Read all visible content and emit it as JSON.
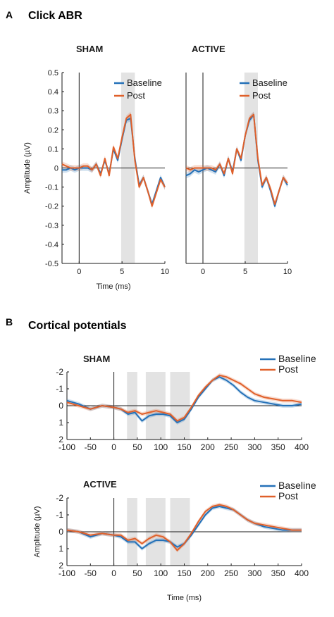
{
  "figure": {
    "panel_a_letter": "A",
    "panel_a_title": "Click ABR",
    "panel_b_letter": "B",
    "panel_b_title": "Cortical potentials"
  },
  "colors": {
    "baseline": "#2471b8",
    "post": "#e0602a",
    "shade": "#e3e3e3",
    "axis": "#1a1a1a"
  },
  "chart_data": [
    {
      "type": "line",
      "panel": "A",
      "title": "SHAM",
      "xlabel": "Time (ms)",
      "ylabel": "Amplitude (µV)",
      "xlim": [
        -2,
        10
      ],
      "ylim": [
        -0.5,
        0.5
      ],
      "xticks": [
        0,
        5,
        10
      ],
      "yticks": [
        0.5,
        0.4,
        0.3,
        0.2,
        0.1,
        0,
        -0.1,
        -0.2,
        -0.3,
        -0.4,
        -0.5
      ],
      "y_inverted": false,
      "shaded_windows": [
        [
          4.9,
          6.5
        ]
      ],
      "legend_position": "top-right",
      "series": [
        {
          "name": "Baseline",
          "x": [
            -2,
            -1.5,
            -1,
            -0.5,
            0,
            0.5,
            1,
            1.5,
            2,
            2.5,
            3,
            3.5,
            4,
            4.5,
            5,
            5.5,
            6,
            6.5,
            7,
            7.5,
            8,
            8.5,
            9,
            9.5,
            10
          ],
          "y": [
            -0.01,
            -0.01,
            0.0,
            -0.01,
            0.0,
            0.0,
            0.0,
            -0.01,
            0.02,
            -0.03,
            0.04,
            -0.03,
            0.1,
            0.04,
            0.15,
            0.25,
            0.26,
            0.05,
            -0.09,
            -0.05,
            -0.12,
            -0.19,
            -0.12,
            -0.05,
            -0.1
          ]
        },
        {
          "name": "Post",
          "x": [
            -2,
            -1.5,
            -1,
            -0.5,
            0,
            0.5,
            1,
            1.5,
            2,
            2.5,
            3,
            3.5,
            4,
            4.5,
            5,
            5.5,
            6,
            6.5,
            7,
            7.5,
            8,
            8.5,
            9,
            9.5,
            10
          ],
          "y": [
            0.02,
            0.01,
            0.0,
            0.0,
            0.0,
            0.01,
            0.01,
            -0.01,
            0.02,
            -0.04,
            0.05,
            -0.04,
            0.11,
            0.05,
            0.16,
            0.26,
            0.28,
            0.04,
            -0.1,
            -0.05,
            -0.12,
            -0.2,
            -0.13,
            -0.06,
            -0.1
          ]
        }
      ]
    },
    {
      "type": "line",
      "panel": "A",
      "title": "ACTIVE",
      "xlabel": "",
      "ylabel": "",
      "xlim": [
        -2,
        10
      ],
      "ylim": [
        -0.5,
        0.5
      ],
      "xticks": [
        0,
        5,
        10
      ],
      "yticks": [],
      "y_inverted": false,
      "shaded_windows": [
        [
          4.9,
          6.5
        ]
      ],
      "legend_position": "top-right",
      "series": [
        {
          "name": "Baseline",
          "x": [
            -2,
            -1.5,
            -1,
            -0.5,
            0,
            0.5,
            1,
            1.5,
            2,
            2.5,
            3,
            3.5,
            4,
            4.5,
            5,
            5.5,
            6,
            6.5,
            7,
            7.5,
            8,
            8.5,
            9,
            9.5,
            10
          ],
          "y": [
            -0.04,
            -0.03,
            -0.01,
            -0.02,
            -0.01,
            0.0,
            -0.01,
            -0.02,
            0.02,
            -0.04,
            0.05,
            -0.02,
            0.1,
            0.04,
            0.17,
            0.25,
            0.28,
            0.04,
            -0.1,
            -0.05,
            -0.12,
            -0.2,
            -0.12,
            -0.05,
            -0.09
          ]
        },
        {
          "name": "Post",
          "x": [
            -2,
            -1.5,
            -1,
            -0.5,
            0,
            0.5,
            1,
            1.5,
            2,
            2.5,
            3,
            3.5,
            4,
            4.5,
            5,
            5.5,
            6,
            6.5,
            7,
            7.5,
            8,
            8.5,
            9,
            9.5,
            10
          ],
          "y": [
            0.0,
            -0.01,
            0.0,
            0.0,
            0.0,
            0.0,
            0.0,
            -0.01,
            0.02,
            -0.03,
            0.05,
            -0.03,
            0.1,
            0.05,
            0.17,
            0.26,
            0.28,
            0.05,
            -0.09,
            -0.05,
            -0.11,
            -0.19,
            -0.12,
            -0.05,
            -0.08
          ]
        }
      ]
    },
    {
      "type": "line",
      "panel": "B",
      "title": "SHAM",
      "xlabel": "",
      "ylabel": "",
      "xlim": [
        -100,
        400
      ],
      "ylim": [
        -2,
        2
      ],
      "xticks": [
        -100,
        -50,
        0,
        50,
        100,
        150,
        200,
        250,
        300,
        350,
        400
      ],
      "yticks": [
        -2,
        -1,
        0,
        1,
        2
      ],
      "y_inverted": true,
      "shaded_windows": [
        [
          28,
          50
        ],
        [
          68,
          110
        ],
        [
          120,
          162
        ]
      ],
      "legend_position": "top-right",
      "series": [
        {
          "name": "Baseline",
          "x": [
            -100,
            -75,
            -50,
            -25,
            0,
            15,
            30,
            45,
            60,
            75,
            90,
            105,
            120,
            135,
            150,
            165,
            180,
            195,
            210,
            225,
            240,
            255,
            270,
            285,
            300,
            320,
            340,
            360,
            380,
            400
          ],
          "y": [
            -0.3,
            -0.1,
            0.2,
            0.0,
            0.1,
            0.2,
            0.5,
            0.4,
            0.9,
            0.6,
            0.5,
            0.5,
            0.6,
            1.0,
            0.8,
            0.2,
            -0.5,
            -1.0,
            -1.5,
            -1.7,
            -1.5,
            -1.2,
            -0.8,
            -0.5,
            -0.3,
            -0.2,
            -0.1,
            0.0,
            0.0,
            -0.1
          ]
        },
        {
          "name": "Post",
          "x": [
            -100,
            -75,
            -50,
            -25,
            0,
            15,
            30,
            45,
            60,
            75,
            90,
            105,
            120,
            135,
            150,
            165,
            180,
            195,
            210,
            225,
            240,
            255,
            270,
            285,
            300,
            320,
            340,
            360,
            380,
            400
          ],
          "y": [
            -0.2,
            0.0,
            0.2,
            0.0,
            0.1,
            0.2,
            0.4,
            0.3,
            0.5,
            0.4,
            0.3,
            0.4,
            0.5,
            0.9,
            0.7,
            0.1,
            -0.6,
            -1.1,
            -1.5,
            -1.8,
            -1.7,
            -1.5,
            -1.3,
            -1.0,
            -0.7,
            -0.5,
            -0.4,
            -0.3,
            -0.3,
            -0.2
          ]
        }
      ]
    },
    {
      "type": "line",
      "panel": "B",
      "title": "ACTIVE",
      "xlabel": "Time (ms)",
      "ylabel": "Amplitude (µV)",
      "xlim": [
        -100,
        400
      ],
      "ylim": [
        -2,
        2
      ],
      "xticks": [
        -100,
        -50,
        0,
        50,
        100,
        150,
        200,
        250,
        300,
        350,
        400
      ],
      "yticks": [
        -2,
        -1,
        0,
        1,
        2
      ],
      "y_inverted": true,
      "shaded_windows": [
        [
          28,
          50
        ],
        [
          68,
          110
        ],
        [
          120,
          162
        ]
      ],
      "legend_position": "top-right",
      "series": [
        {
          "name": "Baseline",
          "x": [
            -100,
            -75,
            -50,
            -25,
            0,
            15,
            30,
            45,
            60,
            75,
            90,
            105,
            120,
            135,
            150,
            165,
            180,
            195,
            210,
            225,
            240,
            255,
            270,
            285,
            300,
            320,
            340,
            360,
            380,
            400
          ],
          "y": [
            -0.1,
            0.0,
            0.3,
            0.1,
            0.2,
            0.3,
            0.6,
            0.6,
            1.0,
            0.7,
            0.5,
            0.5,
            0.6,
            0.9,
            0.7,
            0.2,
            -0.4,
            -1.0,
            -1.4,
            -1.5,
            -1.4,
            -1.3,
            -1.0,
            -0.7,
            -0.5,
            -0.3,
            -0.2,
            -0.1,
            -0.1,
            -0.1
          ]
        },
        {
          "name": "Post",
          "x": [
            -100,
            -75,
            -50,
            -25,
            0,
            15,
            30,
            45,
            60,
            75,
            90,
            105,
            120,
            135,
            150,
            165,
            180,
            195,
            210,
            225,
            240,
            255,
            270,
            285,
            300,
            320,
            340,
            360,
            380,
            400
          ],
          "y": [
            -0.1,
            0.0,
            0.2,
            0.1,
            0.2,
            0.2,
            0.5,
            0.4,
            0.7,
            0.4,
            0.2,
            0.3,
            0.6,
            1.1,
            0.7,
            0.1,
            -0.6,
            -1.2,
            -1.5,
            -1.6,
            -1.5,
            -1.3,
            -1.0,
            -0.7,
            -0.5,
            -0.4,
            -0.3,
            -0.2,
            -0.1,
            -0.1
          ]
        }
      ]
    }
  ]
}
